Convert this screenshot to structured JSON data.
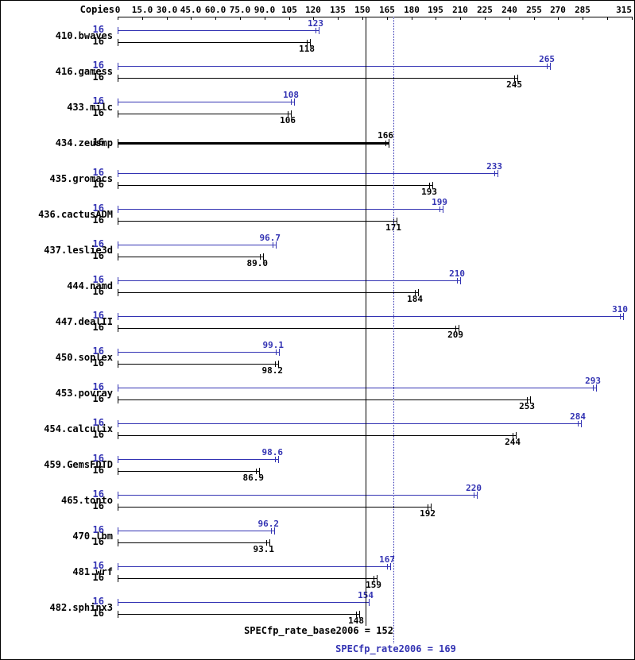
{
  "header": {
    "copies_label": "Copies"
  },
  "axis": {
    "tick_values": [
      0,
      15,
      30,
      45,
      60,
      75,
      90,
      105,
      120,
      135,
      150,
      165,
      180,
      195,
      210,
      225,
      240,
      255,
      270,
      285,
      300,
      315
    ],
    "tick_labels": [
      "0",
      "15.0",
      "30.0",
      "45.0",
      "60.0",
      "75.0",
      "90.0",
      "105",
      "120",
      "135",
      "150",
      "165",
      "180",
      "195",
      "210",
      "225",
      "240",
      "255",
      "270",
      "285",
      "",
      "315"
    ]
  },
  "chart_data": {
    "type": "bar",
    "orientation": "horizontal",
    "title": "",
    "xlabel": "",
    "ylabel": "Copies",
    "xlim": [
      0,
      315
    ],
    "legend": "none",
    "grid": "off",
    "series": [
      {
        "name": "peak",
        "color": "#3333b3"
      },
      {
        "name": "base",
        "color": "#000000"
      }
    ],
    "benchmarks": [
      {
        "name": "410.bwaves",
        "copies": 16,
        "peak": 123,
        "base": 118,
        "peak_label": "123",
        "base_label": "118"
      },
      {
        "name": "416.gamess",
        "copies": 16,
        "peak": 265,
        "base": 245,
        "peak_label": "265",
        "base_label": "245"
      },
      {
        "name": "433.milc",
        "copies": 16,
        "peak": 108,
        "base": 106,
        "peak_label": "108",
        "base_label": "106"
      },
      {
        "name": "434.zeusmp",
        "copies": 16,
        "peak": 166,
        "base": 166,
        "single": true,
        "peak_label": "166",
        "base_label": "166"
      },
      {
        "name": "435.gromacs",
        "copies": 16,
        "peak": 233,
        "base": 193,
        "peak_label": "233",
        "base_label": "193"
      },
      {
        "name": "436.cactusADM",
        "copies": 16,
        "peak": 199,
        "base": 171,
        "peak_label": "199",
        "base_label": "171"
      },
      {
        "name": "437.leslie3d",
        "copies": 16,
        "peak": 96.7,
        "base": 89.0,
        "peak_label": "96.7",
        "base_label": "89.0"
      },
      {
        "name": "444.namd",
        "copies": 16,
        "peak": 210,
        "base": 184,
        "peak_label": "210",
        "base_label": "184"
      },
      {
        "name": "447.dealII",
        "copies": 16,
        "peak": 310,
        "base": 209,
        "peak_label": "310",
        "base_label": "209"
      },
      {
        "name": "450.soplex",
        "copies": 16,
        "peak": 99.1,
        "base": 98.2,
        "peak_label": "99.1",
        "base_label": "98.2"
      },
      {
        "name": "453.povray",
        "copies": 16,
        "peak": 293,
        "base": 253,
        "peak_label": "293",
        "base_label": "253"
      },
      {
        "name": "454.calculix",
        "copies": 16,
        "peak": 284,
        "base": 244,
        "peak_label": "284",
        "base_label": "244"
      },
      {
        "name": "459.GemsFDTD",
        "copies": 16,
        "peak": 98.6,
        "base": 86.9,
        "peak_label": "98.6",
        "base_label": "86.9"
      },
      {
        "name": "465.tonto",
        "copies": 16,
        "peak": 220,
        "base": 192,
        "peak_label": "220",
        "base_label": "192"
      },
      {
        "name": "470.lbm",
        "copies": 16,
        "peak": 96.2,
        "base": 93.1,
        "peak_label": "96.2",
        "base_label": "93.1"
      },
      {
        "name": "481.wrf",
        "copies": 16,
        "peak": 167,
        "base": 159,
        "peak_label": "167",
        "base_label": "159"
      },
      {
        "name": "482.sphinx3",
        "copies": 16,
        "peak": 154,
        "base": 148,
        "peak_label": "154",
        "base_label": "148"
      }
    ],
    "reference_lines": [
      {
        "name": "base_mean",
        "label": "SPECfp_rate_base2006 = 152",
        "value": 152,
        "color": "#000000",
        "style": "solid"
      },
      {
        "name": "peak_mean",
        "label": "SPECfp_rate2006 = 169",
        "value": 169,
        "color": "#3333b3",
        "style": "dotted"
      }
    ]
  },
  "colors": {
    "peak": "#3333b3",
    "base": "#000000",
    "background": "#ffffff",
    "border": "#000000"
  }
}
